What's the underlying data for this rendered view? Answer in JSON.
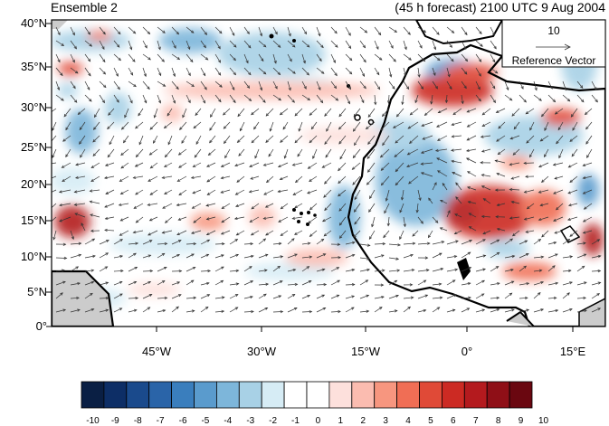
{
  "title": {
    "left": "Ensemble 2",
    "right": "(45 h forecast) 2100 UTC 9 Aug 2004"
  },
  "latitude_labels": [
    "40°N",
    "35°N",
    "30°N",
    "25°N",
    "20°N",
    "15°N",
    "10°N",
    "5°N",
    "0°"
  ],
  "longitude_labels": [
    "45°W",
    "30°W",
    "15°W",
    "0°",
    "15°E"
  ],
  "reference_vector": {
    "magnitude_label": "10",
    "caption": "Reference Vector"
  },
  "colorbar": {
    "labels": [
      "-10",
      "-9",
      "-8",
      "-7",
      "-6",
      "-5",
      "-4",
      "-3",
      "-2",
      "-1",
      "0",
      "1",
      "2",
      "3",
      "4",
      "5",
      "6",
      "7",
      "8",
      "9",
      "10"
    ],
    "colors": [
      "#0a1f44",
      "#0d2e66",
      "#1a4a8c",
      "#2a64a8",
      "#3a7ebd",
      "#5a9bcd",
      "#7db6da",
      "#a8d1e6",
      "#d6ecf5",
      "#ffffff",
      "#ffffff",
      "#fde0dc",
      "#fbbcb0",
      "#f7967f",
      "#f06e55",
      "#e04a37",
      "#cc2a23",
      "#b41a1e",
      "#8f0f17",
      "#6a0710"
    ]
  },
  "colors": {
    "land": "#cccccc",
    "coast": "#000000",
    "arrow": "#333333"
  }
}
